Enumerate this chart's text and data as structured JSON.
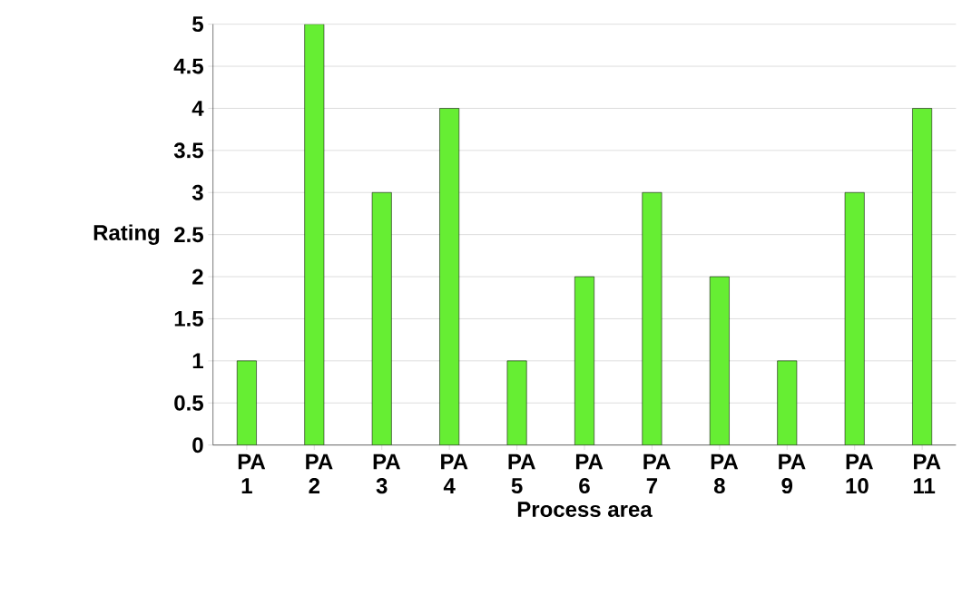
{
  "chart_data": {
    "type": "bar",
    "xlabel": "Process area",
    "ylabel": "Rating",
    "categories": [
      "PA 1",
      "PA 2",
      "PA 3",
      "PA 4",
      "PA 5",
      "PA 6",
      "PA 7",
      "PA 8",
      "PA 9",
      "PA 10",
      "PA 11"
    ],
    "values": [
      1,
      5,
      3,
      4,
      1,
      2,
      3,
      2,
      1,
      3,
      4
    ],
    "color": "#66ee33",
    "ylim": [
      0,
      5
    ],
    "yticks": [
      0,
      0.5,
      1,
      1.5,
      2,
      2.5,
      3,
      3.5,
      4,
      4.5,
      5
    ],
    "grid": "y"
  }
}
